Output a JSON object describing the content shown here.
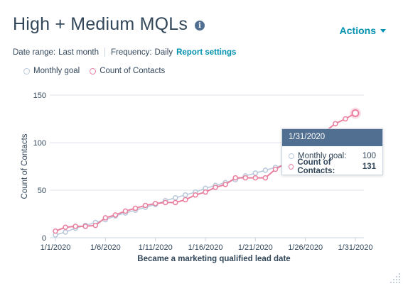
{
  "header": {
    "title": "High + Medium MQLs",
    "info_icon": "info-icon",
    "actions_label": "Actions"
  },
  "filters": {
    "date_range_label": "Date range:",
    "date_range_value": "Last month",
    "frequency_label": "Frequency:",
    "frequency_value": "Daily",
    "report_settings_label": "Report settings"
  },
  "legend": {
    "items": [
      {
        "label": "Monthly goal",
        "color": "#b9c7da"
      },
      {
        "label": "Count of Contacts",
        "color": "#ea7f9f"
      }
    ]
  },
  "tooltip": {
    "date": "1/31/2020",
    "rows": [
      {
        "label": "Monthly goal:",
        "value": "100"
      },
      {
        "label": "Count of Contacts:",
        "value": "131"
      }
    ]
  },
  "chart_data": {
    "type": "line",
    "xlabel": "Became a marketing qualified lead date",
    "ylabel": "Count of Contacts",
    "ylim": [
      0,
      150
    ],
    "yticks": [
      0,
      50,
      100,
      150
    ],
    "xticks": [
      "1/1/2020",
      "1/6/2020",
      "1/11/2020",
      "1/16/2020",
      "1/21/2020",
      "1/26/2020",
      "1/31/2020"
    ],
    "x": [
      1,
      2,
      3,
      4,
      5,
      6,
      7,
      8,
      9,
      10,
      11,
      12,
      13,
      14,
      15,
      16,
      17,
      18,
      19,
      20,
      21,
      22,
      23,
      24,
      25,
      26,
      27,
      28,
      29,
      30,
      31
    ],
    "grid": true,
    "legend_position": "top-left",
    "series": [
      {
        "name": "Monthly goal",
        "color": "#b9c7da",
        "values": [
          3,
          6,
          10,
          13,
          16,
          19,
          23,
          26,
          29,
          32,
          35,
          39,
          42,
          45,
          48,
          52,
          55,
          58,
          61,
          65,
          68,
          71,
          74,
          77,
          81,
          84,
          87,
          90,
          94,
          97,
          100
        ]
      },
      {
        "name": "Count of Contacts",
        "color": "#ea7f9f",
        "values": [
          7,
          11,
          12,
          12,
          13,
          21,
          24,
          28,
          31,
          34,
          36,
          37,
          37,
          40,
          45,
          48,
          53,
          56,
          63,
          63,
          63,
          63,
          72,
          78,
          89,
          96,
          105,
          112,
          120,
          125,
          131
        ]
      }
    ]
  }
}
